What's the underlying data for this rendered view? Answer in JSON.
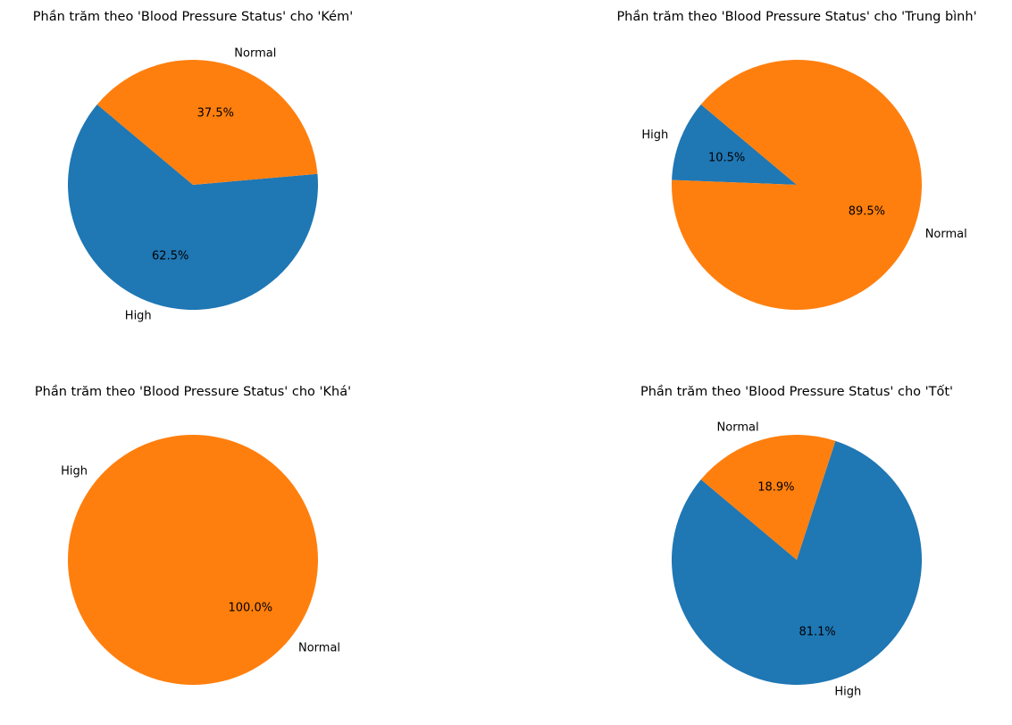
{
  "chart_data": [
    {
      "type": "pie",
      "title": "Phần trăm theo 'Blood Pressure Status' cho 'Kém'",
      "categories": [
        "High",
        "Normal"
      ],
      "values": [
        62.5,
        37.5
      ],
      "pct_labels": [
        "62.5%",
        "37.5%"
      ],
      "colors": [
        "#1f77b4",
        "#ff7f0e"
      ]
    },
    {
      "type": "pie",
      "title": "Phần trăm theo 'Blood Pressure Status' cho 'Trung bình'",
      "categories": [
        "High",
        "Normal"
      ],
      "values": [
        10.5,
        89.5
      ],
      "pct_labels": [
        "10.5%",
        "89.5%"
      ],
      "colors": [
        "#1f77b4",
        "#ff7f0e"
      ]
    },
    {
      "type": "pie",
      "title": "Phần trăm theo 'Blood Pressure Status' cho 'Khá'",
      "categories": [
        "High",
        "Normal"
      ],
      "values": [
        0.0,
        100.0
      ],
      "pct_labels": [
        "0.0%",
        "100.0%"
      ],
      "colors": [
        "#1f77b4",
        "#ff7f0e"
      ]
    },
    {
      "type": "pie",
      "title": "Phần trăm theo 'Blood Pressure Status' cho 'Tốt'",
      "categories": [
        "High",
        "Normal"
      ],
      "values": [
        81.1,
        18.9
      ],
      "pct_labels": [
        "81.1%",
        "18.9%"
      ],
      "colors": [
        "#1f77b4",
        "#ff7f0e"
      ]
    }
  ]
}
